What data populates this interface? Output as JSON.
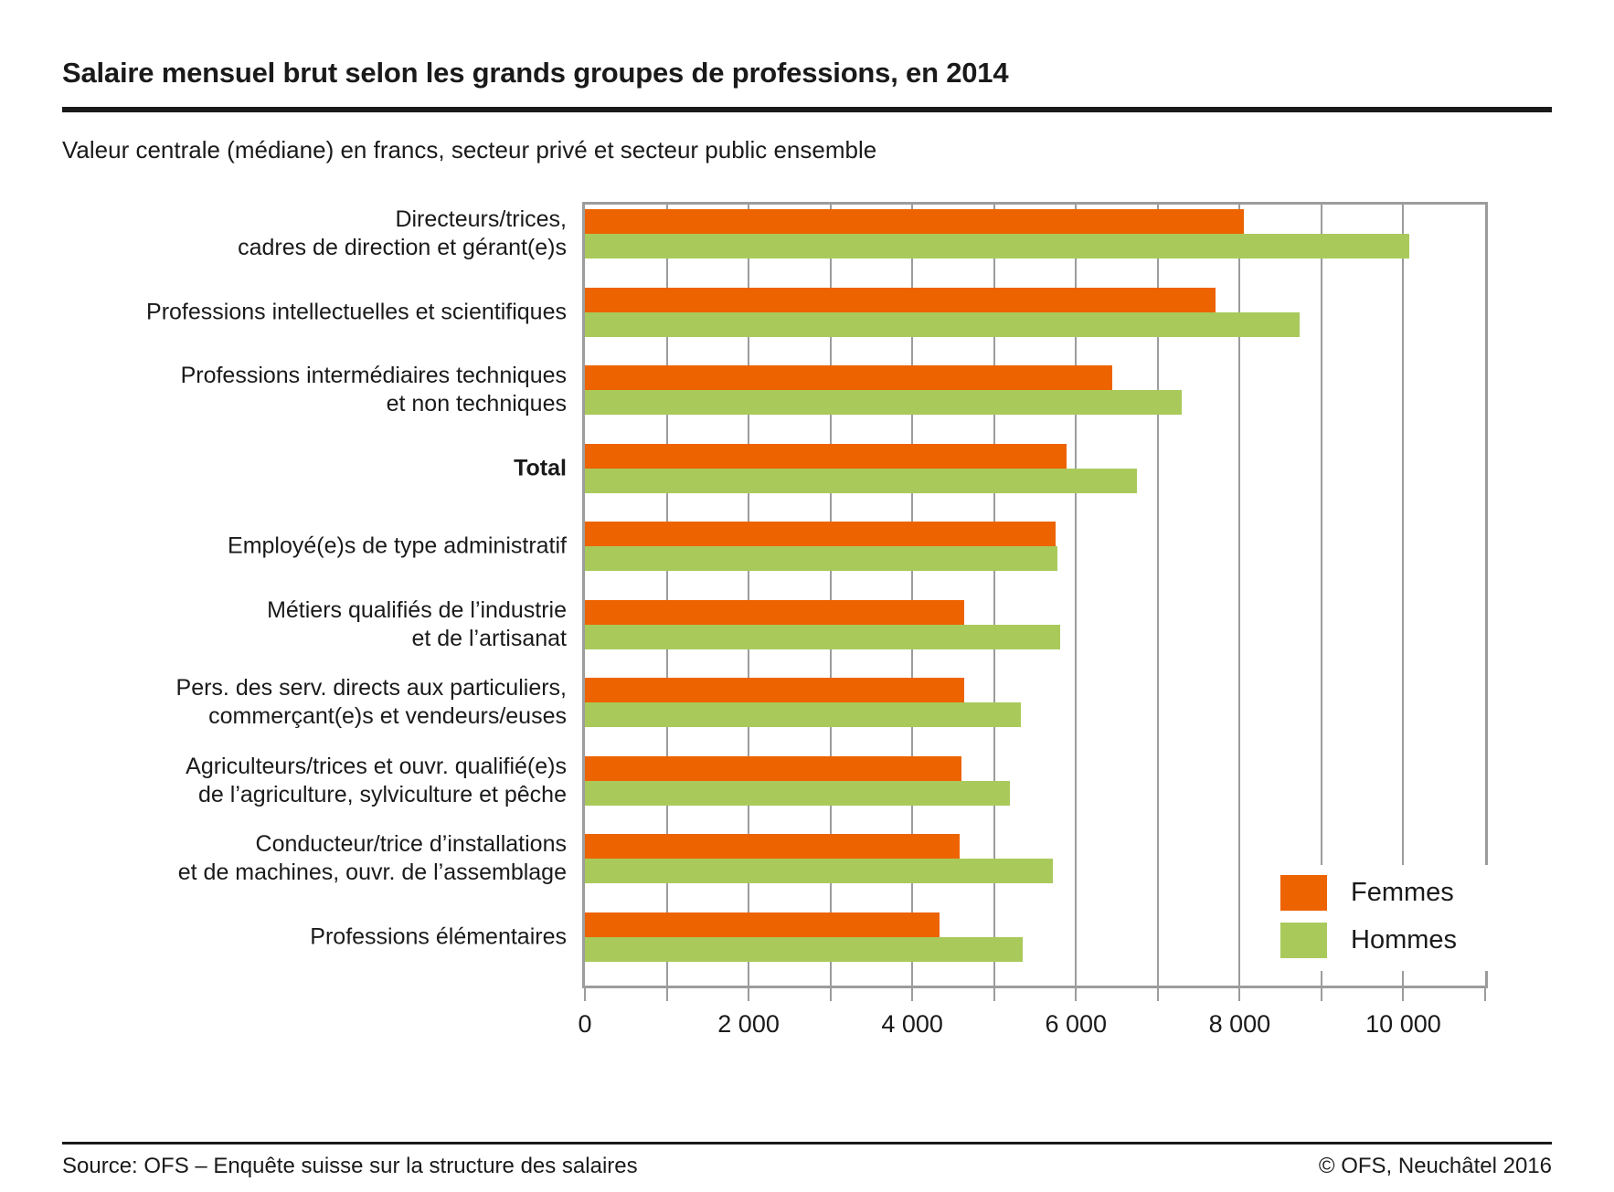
{
  "header": {
    "title": "Salaire mensuel brut selon les grands groupes de professions, en 2014",
    "subtitle": "Valeur centrale (médiane) en francs, secteur privé et secteur public ensemble"
  },
  "footer": {
    "source": "Source: OFS – Enquête suisse sur la structure des salaires",
    "copyright": "© OFS, Neuchâtel 2016"
  },
  "colors": {
    "femmes": "#ed6300",
    "hommes": "#a9ca5b",
    "grid": "#9c9c9c",
    "text": "#1a1a1a"
  },
  "chart_data": {
    "type": "bar",
    "orientation": "horizontal",
    "title": "Salaire mensuel brut selon les grands groupes de professions, en 2014",
    "subtitle": "Valeur centrale (médiane) en francs, secteur privé et secteur public ensemble",
    "unit": "francs",
    "grid": true,
    "xlim": [
      0,
      11000
    ],
    "gridline_step": 1000,
    "tick_step": 1000,
    "tick_labels": [
      {
        "value": 0,
        "label": "0"
      },
      {
        "value": 2000,
        "label": "2 000"
      },
      {
        "value": 4000,
        "label": "4 000"
      },
      {
        "value": 6000,
        "label": "6 000"
      },
      {
        "value": 8000,
        "label": "8 000"
      },
      {
        "value": 10000,
        "label": "10 000"
      }
    ],
    "legend_position": "inside-bottom-right",
    "categories": [
      {
        "lines": [
          "Directeurs/trices,",
          "cadres de direction et gérant(e)s"
        ],
        "bold": false
      },
      {
        "lines": [
          "Professions intellectuelles et scientifiques"
        ],
        "bold": false
      },
      {
        "lines": [
          "Professions intermédiaires techniques",
          "et non techniques"
        ],
        "bold": false
      },
      {
        "lines": [
          "Total"
        ],
        "bold": true
      },
      {
        "lines": [
          "Employé(e)s de type administratif"
        ],
        "bold": false
      },
      {
        "lines": [
          "Métiers qualifiés de l’industrie",
          "et de l’artisanat"
        ],
        "bold": false
      },
      {
        "lines": [
          "Pers. des serv. directs aux particuliers,",
          "commerçant(e)s et vendeurs/euses"
        ],
        "bold": false
      },
      {
        "lines": [
          "Agriculteurs/trices et ouvr. qualifié(e)s",
          "de l’agriculture, sylviculture et pêche"
        ],
        "bold": false
      },
      {
        "lines": [
          "Conducteur/trice d’installations",
          "et de machines, ouvr. de l’assemblage"
        ],
        "bold": false
      },
      {
        "lines": [
          "Professions élémentaires"
        ],
        "bold": false
      }
    ],
    "series": [
      {
        "name": "Femmes",
        "color": "#ed6300",
        "values": [
          8050,
          7700,
          6440,
          5880,
          5750,
          4640,
          4630,
          4600,
          4580,
          4330
        ]
      },
      {
        "name": "Hommes",
        "color": "#a9ca5b",
        "values": [
          10070,
          8730,
          7290,
          6740,
          5770,
          5810,
          5330,
          5190,
          5720,
          5350
        ]
      }
    ]
  }
}
